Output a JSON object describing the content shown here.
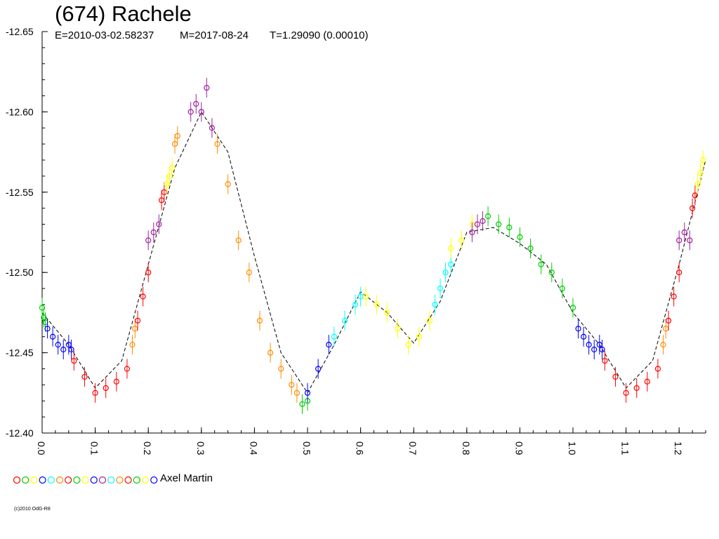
{
  "header": {
    "title": "(674) Rachele",
    "epoch": "E=2010-03-02.58237",
    "mean": "M=2017-08-24",
    "period": "T=1.29090 (0.00010)"
  },
  "legend": {
    "observer": "Axel Martin",
    "symbol_colors": [
      "#ff0000",
      "#00cc00",
      "#ffff00",
      "#0000ff",
      "#00ffff",
      "#ff8c00",
      "#ff0000",
      "#00cc00",
      "#ffff00",
      "#0000ff",
      "#a020a0",
      "#00ffff",
      "#ff8c00",
      "#ff0000",
      "#00cc00",
      "#ffff00",
      "#0000ff"
    ]
  },
  "footer": {
    "copyright": "(c)2010 OdG-R8"
  },
  "chart_data": {
    "type": "scatter",
    "xlim": [
      0.0,
      1.25
    ],
    "ylim": [
      -12.4,
      -12.65
    ],
    "y_reversed_display": true,
    "x_ticks": [
      "0.0",
      "0.1",
      "0.2",
      "0.3",
      "0.4",
      "0.5",
      "0.6",
      "0.7",
      "0.8",
      "0.9",
      "1.0",
      "1.1",
      "1.2"
    ],
    "y_ticks": [
      "-12.40",
      "-12.45",
      "-12.50",
      "-12.55",
      "-12.60",
      "-12.65"
    ],
    "grid": false,
    "fit_curve": [
      [
        0.0,
        -12.475
      ],
      [
        0.05,
        -12.455
      ],
      [
        0.1,
        -12.428
      ],
      [
        0.15,
        -12.445
      ],
      [
        0.2,
        -12.505
      ],
      [
        0.25,
        -12.565
      ],
      [
        0.3,
        -12.6
      ],
      [
        0.35,
        -12.575
      ],
      [
        0.4,
        -12.51
      ],
      [
        0.45,
        -12.45
      ],
      [
        0.5,
        -12.425
      ],
      [
        0.55,
        -12.455
      ],
      [
        0.6,
        -12.488
      ],
      [
        0.65,
        -12.475
      ],
      [
        0.7,
        -12.456
      ],
      [
        0.75,
        -12.482
      ],
      [
        0.8,
        -12.525
      ],
      [
        0.85,
        -12.528
      ],
      [
        0.9,
        -12.518
      ],
      [
        0.95,
        -12.505
      ],
      [
        1.0,
        -12.475
      ],
      [
        1.05,
        -12.455
      ],
      [
        1.1,
        -12.428
      ],
      [
        1.15,
        -12.445
      ],
      [
        1.2,
        -12.505
      ],
      [
        1.25,
        -12.57
      ]
    ],
    "series": [
      {
        "color": "#00cc00",
        "x": [
          0.0,
          0.003,
          0.006
        ],
        "y": [
          -12.478,
          -12.472,
          -12.469
        ]
      },
      {
        "color": "#0000ff",
        "x": [
          0.01,
          0.02,
          0.03,
          0.04,
          0.05,
          0.055
        ],
        "y": [
          -12.465,
          -12.46,
          -12.455,
          -12.452,
          -12.455,
          -12.452
        ]
      },
      {
        "color": "#ff0000",
        "x": [
          0.06,
          0.08,
          0.1,
          0.12,
          0.14,
          0.16
        ],
        "y": [
          -12.445,
          -12.435,
          -12.425,
          -12.428,
          -12.432,
          -12.44
        ]
      },
      {
        "color": "#ff8c00",
        "x": [
          0.17,
          0.175
        ],
        "y": [
          -12.455,
          -12.465
        ]
      },
      {
        "color": "#ff0000",
        "x": [
          0.18,
          0.19,
          0.2
        ],
        "y": [
          -12.47,
          -12.485,
          -12.5
        ]
      },
      {
        "color": "#a020a0",
        "x": [
          0.2,
          0.21,
          0.22
        ],
        "y": [
          -12.52,
          -12.525,
          -12.53
        ]
      },
      {
        "color": "#ff0000",
        "x": [
          0.225,
          0.23
        ],
        "y": [
          -12.545,
          -12.55
        ]
      },
      {
        "color": "#ffff00",
        "x": [
          0.235,
          0.24,
          0.245
        ],
        "y": [
          -12.555,
          -12.56,
          -12.565
        ]
      },
      {
        "color": "#ff8c00",
        "x": [
          0.25,
          0.255
        ],
        "y": [
          -12.58,
          -12.585
        ]
      },
      {
        "color": "#a020a0",
        "x": [
          0.28,
          0.29,
          0.3,
          0.31,
          0.32
        ],
        "y": [
          -12.6,
          -12.605,
          -12.6,
          -12.615,
          -12.59
        ]
      },
      {
        "color": "#ff8c00",
        "x": [
          0.33,
          0.35,
          0.37,
          0.39,
          0.41,
          0.43,
          0.45,
          0.47,
          0.48
        ],
        "y": [
          -12.58,
          -12.555,
          -12.52,
          -12.5,
          -12.47,
          -12.45,
          -12.44,
          -12.43,
          -12.425
        ]
      },
      {
        "color": "#00cc00",
        "x": [
          0.49,
          0.5
        ],
        "y": [
          -12.418,
          -12.42
        ]
      },
      {
        "color": "#0000ff",
        "x": [
          0.5,
          0.52,
          0.54
        ],
        "y": [
          -12.425,
          -12.44,
          -12.455
        ]
      },
      {
        "color": "#00ffff",
        "x": [
          0.55,
          0.57,
          0.59,
          0.6
        ],
        "y": [
          -12.46,
          -12.47,
          -12.48,
          -12.485
        ]
      },
      {
        "color": "#ffff00",
        "x": [
          0.61,
          0.63,
          0.65,
          0.67,
          0.69,
          0.71,
          0.73
        ],
        "y": [
          -12.485,
          -12.48,
          -12.475,
          -12.465,
          -12.455,
          -12.46,
          -12.47
        ]
      },
      {
        "color": "#00ffff",
        "x": [
          0.74,
          0.75,
          0.76,
          0.77
        ],
        "y": [
          -12.48,
          -12.49,
          -12.5,
          -12.505
        ]
      },
      {
        "color": "#ffff00",
        "x": [
          0.77,
          0.79,
          0.81
        ],
        "y": [
          -12.515,
          -12.52,
          -12.53
        ]
      },
      {
        "color": "#a020a0",
        "x": [
          0.81,
          0.82,
          0.83
        ],
        "y": [
          -12.525,
          -12.53,
          -12.532
        ]
      },
      {
        "color": "#00cc00",
        "x": [
          0.84,
          0.86,
          0.88,
          0.9,
          0.92,
          0.94,
          0.96,
          0.98,
          1.0
        ],
        "y": [
          -12.535,
          -12.53,
          -12.528,
          -12.522,
          -12.515,
          -12.505,
          -12.5,
          -12.49,
          -12.478
        ]
      },
      {
        "color": "#0000ff",
        "x": [
          1.01,
          1.02,
          1.03,
          1.04,
          1.05,
          1.055
        ],
        "y": [
          -12.465,
          -12.46,
          -12.455,
          -12.452,
          -12.455,
          -12.452
        ]
      },
      {
        "color": "#ff0000",
        "x": [
          1.06,
          1.08,
          1.1,
          1.12,
          1.14,
          1.16
        ],
        "y": [
          -12.445,
          -12.435,
          -12.425,
          -12.428,
          -12.432,
          -12.44
        ]
      },
      {
        "color": "#ff8c00",
        "x": [
          1.17,
          1.175
        ],
        "y": [
          -12.455,
          -12.465
        ]
      },
      {
        "color": "#ff0000",
        "x": [
          1.18,
          1.19,
          1.2
        ],
        "y": [
          -12.47,
          -12.485,
          -12.5
        ]
      },
      {
        "color": "#a020a0",
        "x": [
          1.2,
          1.21,
          1.22
        ],
        "y": [
          -12.52,
          -12.525,
          -12.52
        ]
      },
      {
        "color": "#ff0000",
        "x": [
          1.225,
          1.23
        ],
        "y": [
          -12.54,
          -12.548
        ]
      },
      {
        "color": "#ffff00",
        "x": [
          1.235,
          1.24,
          1.245
        ],
        "y": [
          -12.555,
          -12.562,
          -12.57
        ]
      }
    ]
  }
}
